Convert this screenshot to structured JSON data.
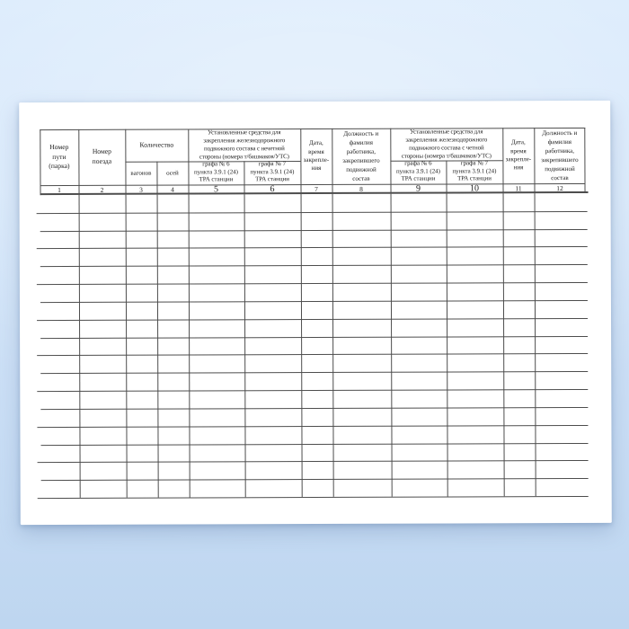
{
  "table": {
    "header": {
      "col1": "Номер\nпути\n(парка)",
      "col2": "Номер\nпоезда",
      "quantity": "Количество",
      "wagons": "вагонов",
      "axles": "осей",
      "group_odd": "Установленные средства для\nзакрепления железнодорожного\nподвижного состава с нечетной\nстороны (номера т/башмаков/УТС)",
      "group_even": "Установленные средства для\nзакрепления железнодорожного\nподвижного состава с четной\nстороны (номера т/башмаков/УТС)",
      "grafa6": "графа № 6\nпункта 3.9.1 (24)\nТРА станции",
      "grafa7": "графа № 7\nпункта 3.9.1 (24)\nТРА станции",
      "datetime": "Дата,\nвремя\nзакрепле-\nния",
      "worker": "Должность и\nфамилия\nработника,\nзакрепившего\nподвижной\nсостав"
    },
    "column_numbers": [
      "1",
      "2",
      "3",
      "4",
      "5",
      "6",
      "7",
      "8",
      "9",
      "10",
      "11",
      "12"
    ],
    "body": {
      "rows": 17,
      "cell_value": ""
    }
  },
  "colors": {
    "paper": "#ffffff",
    "grid_line": "#4d4d4d",
    "text": "#1c1c1c",
    "background_top": "#d9eafc",
    "background_bottom": "#bed6f0"
  }
}
